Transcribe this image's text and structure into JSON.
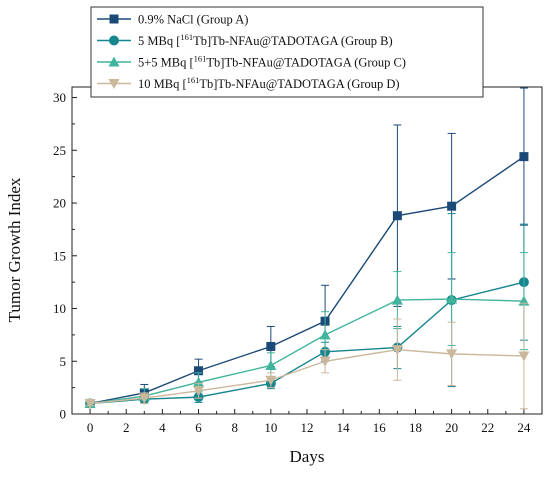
{
  "chart_data": {
    "type": "line",
    "xlabel": "Days",
    "ylabel": "Tumor Growth Index",
    "xlim": [
      -1,
      25
    ],
    "ylim": [
      0,
      31
    ],
    "xticks": [
      0,
      2,
      4,
      6,
      8,
      10,
      12,
      14,
      16,
      18,
      20,
      22,
      24
    ],
    "yticks": [
      0,
      5,
      10,
      15,
      20,
      25,
      30
    ],
    "grid": false,
    "legend_position": "top-left",
    "series": [
      {
        "name": "0.9% NaCl (Group A)",
        "legend": {
          "pre": "0.9% NaCl (Group A)",
          "sup": "",
          "post": ""
        },
        "color": "#1c4a78",
        "marker": "square",
        "x": [
          0,
          3,
          6,
          10,
          13,
          17,
          20,
          24
        ],
        "y": [
          1.0,
          2.0,
          4.1,
          6.4,
          8.8,
          18.8,
          19.7,
          24.4
        ],
        "err": [
          0.2,
          0.8,
          1.1,
          1.9,
          3.4,
          8.6,
          6.9,
          6.5
        ]
      },
      {
        "name": "5 MBq [161Tb]Tb-NFAu@TADOTAGA (Group B)",
        "legend": {
          "pre": "5 MBq [",
          "sup": "161",
          "post": "Tb]Tb-NFAu@TADOTAGA (Group B)"
        },
        "color": "#17868f",
        "marker": "circle",
        "x": [
          0,
          3,
          6,
          10,
          13,
          17,
          20,
          24
        ],
        "y": [
          1.0,
          1.4,
          1.6,
          2.9,
          5.9,
          6.3,
          10.8,
          12.5
        ],
        "err": [
          0.2,
          0.4,
          0.5,
          0.5,
          0.9,
          2.0,
          8.2,
          5.5
        ]
      },
      {
        "name": "5+5 MBq [161Tb]Tb-NFAu@TADOTAGA (Group C)",
        "legend": {
          "pre": "5+5 MBq [",
          "sup": "161",
          "post": "Tb]Tb-NFAu@TADOTAGA (Group C)"
        },
        "color": "#40b49c",
        "marker": "triangle-up",
        "x": [
          0,
          3,
          6,
          10,
          13,
          17,
          20,
          24
        ],
        "y": [
          1.0,
          1.7,
          3.0,
          4.6,
          7.5,
          10.8,
          10.9,
          10.7
        ],
        "err": [
          0.2,
          0.7,
          0.9,
          1.2,
          2.2,
          2.7,
          4.4,
          4.6
        ]
      },
      {
        "name": "10 MBq [161Tb]Tb-NFAu@TADOTAGA (Group D)",
        "legend": {
          "pre": "10 MBq [",
          "sup": "161",
          "post": "Tb]Tb-NFAu@TADOTAGA (Group D)"
        },
        "color": "#cbb89c",
        "marker": "triangle-down",
        "x": [
          0,
          3,
          6,
          10,
          13,
          17,
          20,
          24
        ],
        "y": [
          1.0,
          1.5,
          2.2,
          3.2,
          5.0,
          6.1,
          5.7,
          5.5
        ],
        "err": [
          0.2,
          0.5,
          0.7,
          0.7,
          1.1,
          2.9,
          3.0,
          5.0
        ]
      }
    ]
  }
}
